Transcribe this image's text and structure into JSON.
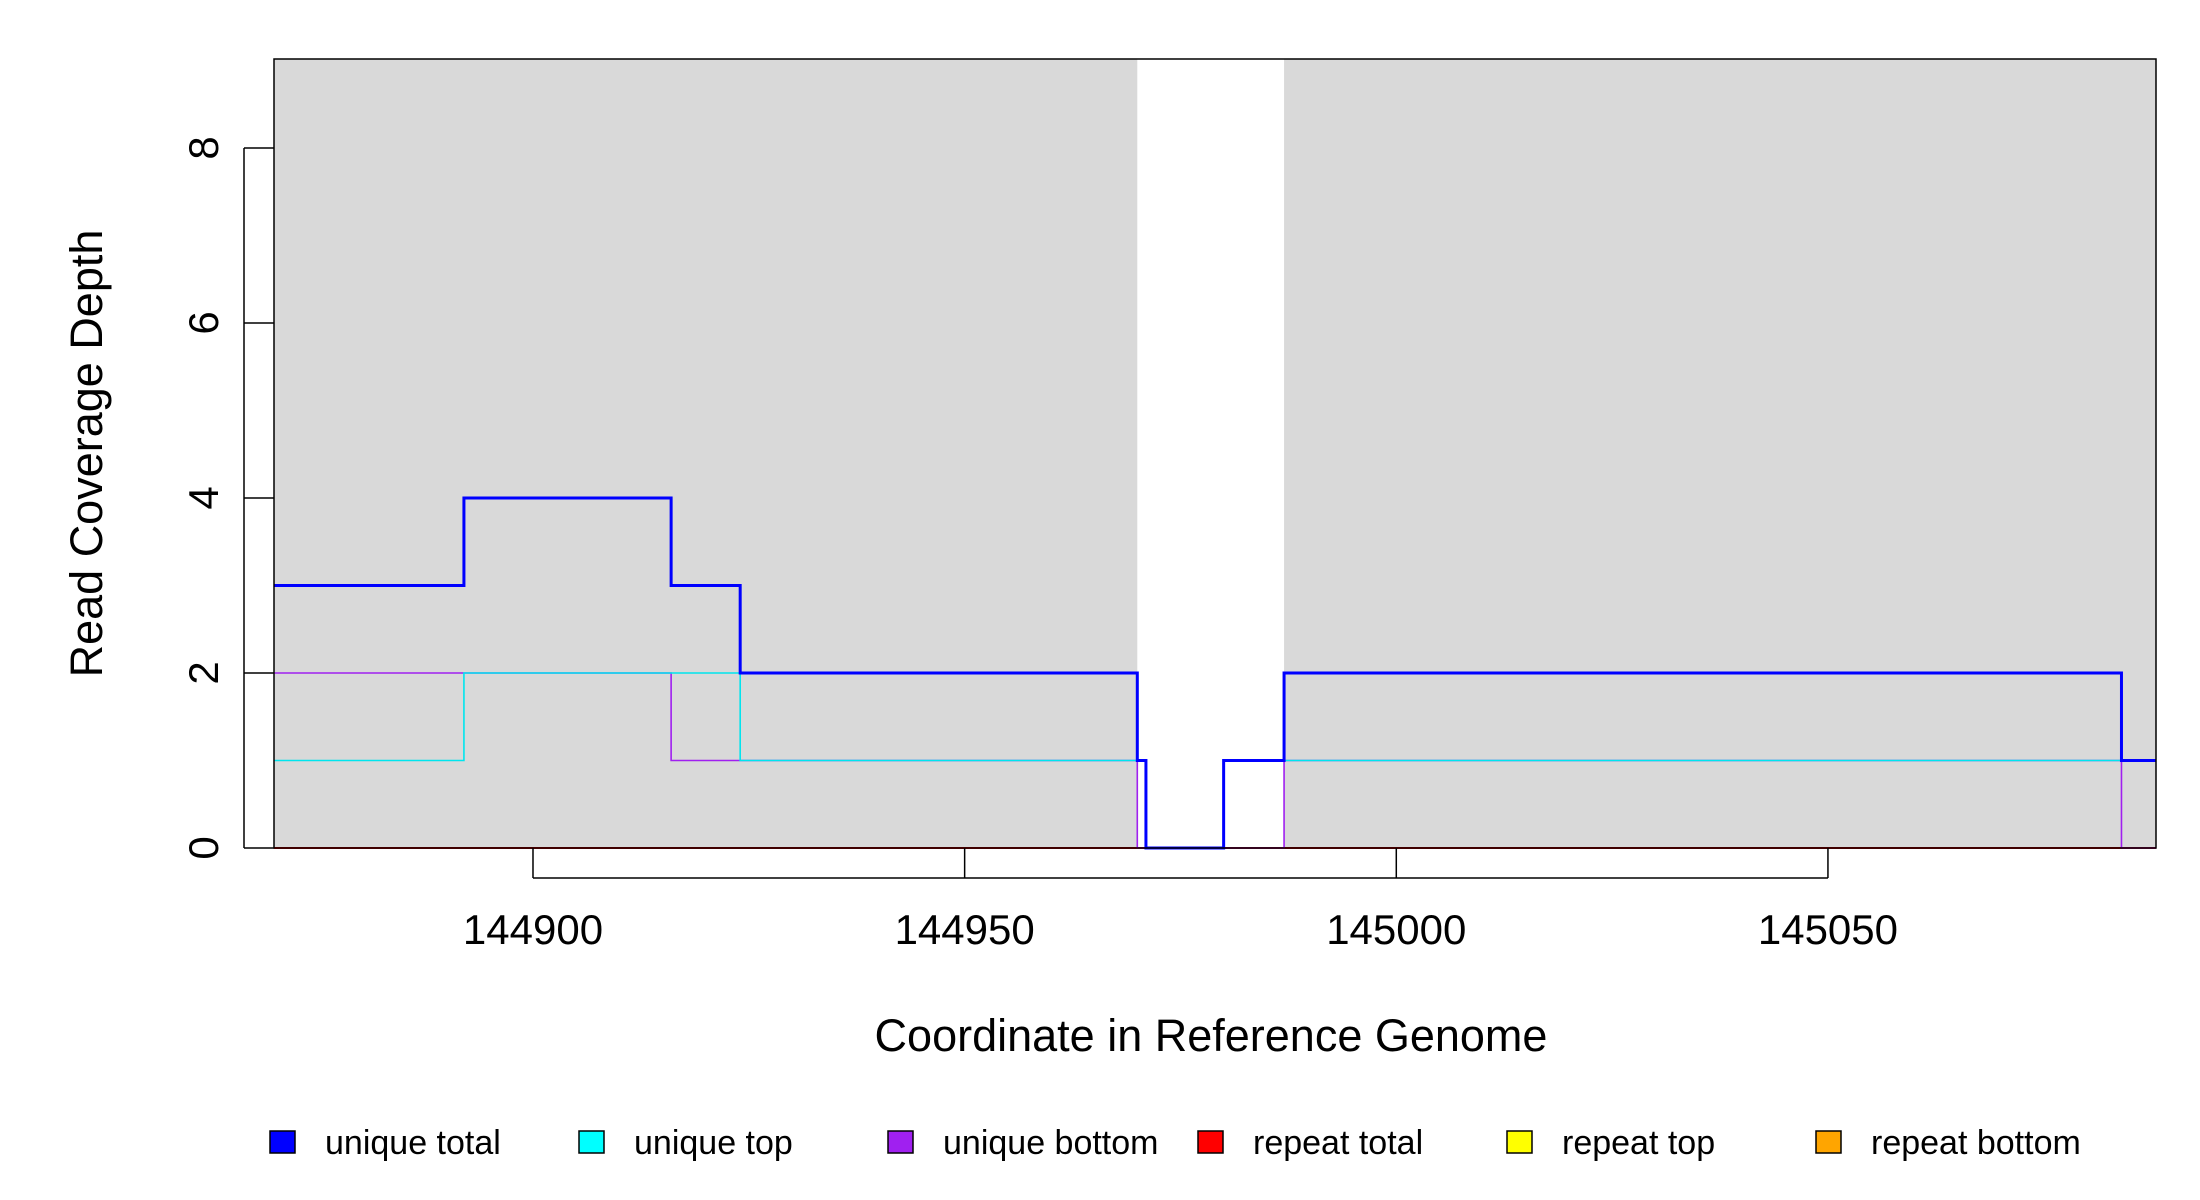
{
  "chart_data": {
    "type": "line",
    "step": true,
    "xlabel": "Coordinate in Reference Genome",
    "ylabel": "Read Coverage Depth",
    "xlim": [
      144870,
      145088
    ],
    "ylim": [
      0,
      9
    ],
    "xticks": [
      144900,
      144950,
      145000,
      145050
    ],
    "xtick_labels": [
      "144900",
      "144950",
      "145000",
      "145050"
    ],
    "yticks": [
      0,
      2,
      4,
      6,
      8
    ],
    "ytick_labels": [
      "0",
      "2",
      "4",
      "6",
      "8"
    ],
    "background_color": "#d9d9d9",
    "unshaded_x_range": [
      144970,
      144987
    ],
    "series": [
      {
        "name": "unique total",
        "color": "#0000ff",
        "x": [
          144870,
          144892,
          144916,
          144924,
          144970,
          144971,
          144980,
          144987,
          145084,
          145088
        ],
        "y": [
          3,
          4,
          3,
          2,
          1,
          0,
          1,
          2,
          1,
          1
        ]
      },
      {
        "name": "unique top",
        "color": "#00e5ee",
        "x": [
          144870,
          144892,
          144924,
          144971,
          144980,
          145088
        ],
        "y": [
          1,
          2,
          1,
          0,
          1,
          1
        ]
      },
      {
        "name": "unique bottom",
        "color": "#a020f0",
        "x": [
          144870,
          144916,
          144970,
          144987,
          145084,
          145088
        ],
        "y": [
          2,
          1,
          0,
          1,
          0,
          0
        ]
      },
      {
        "name": "repeat total",
        "color": "#ff0000",
        "x": [
          144870,
          145088
        ],
        "y": [
          0,
          0
        ]
      },
      {
        "name": "repeat top",
        "color": "#ffff00",
        "x": [
          144870,
          145088
        ],
        "y": [
          0,
          0
        ]
      },
      {
        "name": "repeat bottom",
        "color": "#ffa500",
        "x": [
          144870,
          145088
        ],
        "y": [
          0,
          0
        ]
      }
    ],
    "legend_position": "bottom",
    "legend": [
      {
        "label": "unique total",
        "color": "#0000ff"
      },
      {
        "label": "unique top",
        "color": "#00ffff"
      },
      {
        "label": "unique bottom",
        "color": "#a020f0"
      },
      {
        "label": "repeat total",
        "color": "#ff0000"
      },
      {
        "label": "repeat top",
        "color": "#ffff00"
      },
      {
        "label": "repeat bottom",
        "color": "#ffa500"
      }
    ]
  }
}
